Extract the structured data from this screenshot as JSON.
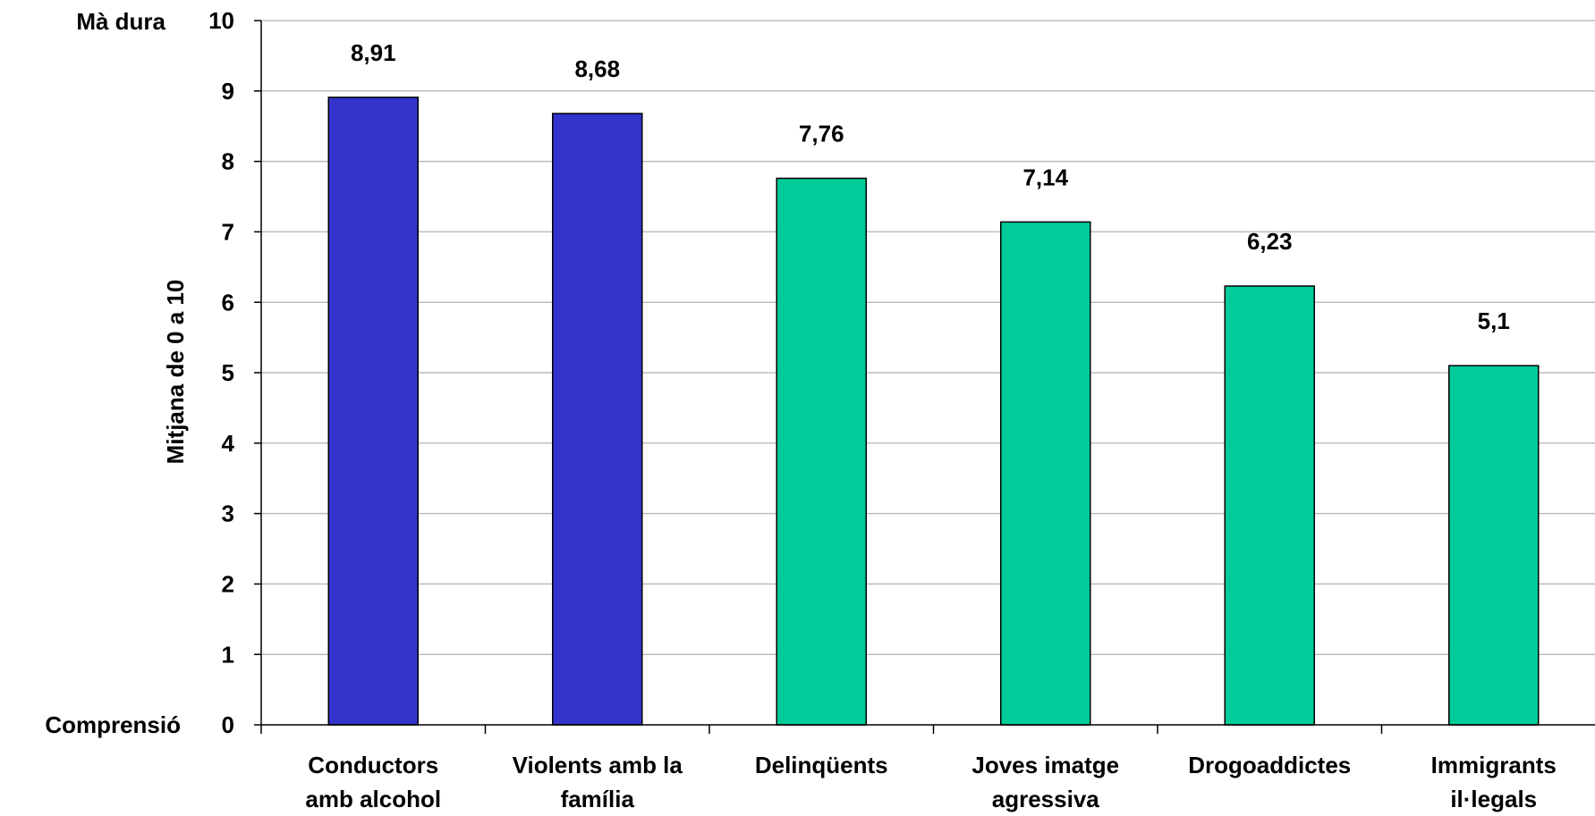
{
  "chart_data": {
    "type": "bar",
    "ylabel": "Mitjana de 0  a 10",
    "scale_top_label": "Mà dura",
    "scale_bottom_label": "Comprensió",
    "ylim": [
      0,
      10
    ],
    "yticks": [
      "0",
      "1",
      "2",
      "3",
      "4",
      "5",
      "6",
      "7",
      "8",
      "9",
      "10"
    ],
    "grid": true,
    "categories": [
      [
        "Conductors",
        "amb alcohol"
      ],
      [
        "Violents amb la",
        "família"
      ],
      [
        "Delinqüents"
      ],
      [
        "Joves imatge",
        "agressiva"
      ],
      [
        "Drogoaddictes"
      ],
      [
        "Immigrants",
        "il·legals"
      ]
    ],
    "values": [
      8.91,
      8.68,
      7.76,
      7.14,
      6.23,
      5.1
    ],
    "value_labels": [
      "8,91",
      "8,68",
      "7,76",
      "7,14",
      "6,23",
      "5,1"
    ],
    "bar_colors": [
      "#3333CC",
      "#3333CC",
      "#00CC99",
      "#00CC99",
      "#00CC99",
      "#00CC99"
    ]
  }
}
